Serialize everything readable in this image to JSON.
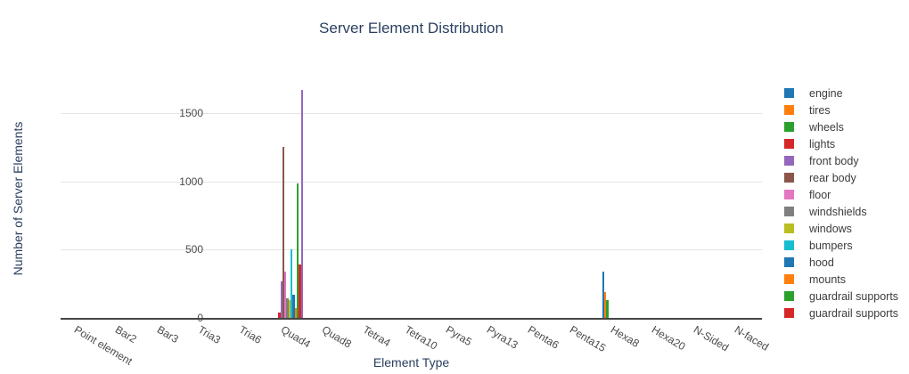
{
  "chart_data": {
    "type": "bar",
    "title": "Server Element Distribution",
    "xlabel": "Element Type",
    "ylabel": "Number of Server Elements",
    "grid": true,
    "legend_position": "right",
    "yticks": [
      0,
      500,
      1000,
      1500
    ],
    "ylim": [
      0,
      1754
    ],
    "categories": [
      "Point element",
      "Bar2",
      "Bar3",
      "Tria3",
      "Tria6",
      "Quad4",
      "Quad8",
      "Tetra4",
      "Tetra10",
      "Pyra5",
      "Pyra13",
      "Penta6",
      "Penta15",
      "Hexa8",
      "Hexa20",
      "N-Sided",
      "N-faced"
    ],
    "series": [
      {
        "name": "engine",
        "color": "#1f77b4",
        "in_legend": true,
        "values": [
          0,
          0,
          0,
          0,
          0,
          0,
          0,
          0,
          0,
          0,
          0,
          0,
          0,
          340,
          0,
          0,
          0
        ]
      },
      {
        "name": "tires",
        "color": "#ff7f0e",
        "in_legend": true,
        "values": [
          0,
          0,
          0,
          0,
          0,
          0,
          0,
          0,
          0,
          0,
          0,
          0,
          0,
          190,
          0,
          0,
          0
        ]
      },
      {
        "name": "wheels",
        "color": "#2ca02c",
        "in_legend": true,
        "values": [
          0,
          0,
          0,
          0,
          0,
          0,
          0,
          0,
          0,
          0,
          0,
          0,
          0,
          130,
          0,
          0,
          0
        ]
      },
      {
        "name": "lights",
        "color": "#d62728",
        "in_legend": true,
        "values": [
          0,
          0,
          0,
          0,
          0,
          40,
          0,
          0,
          0,
          0,
          0,
          0,
          0,
          0,
          0,
          0,
          0
        ]
      },
      {
        "name": "front body",
        "color": "#9467bd",
        "in_legend": true,
        "values": [
          0,
          0,
          0,
          0,
          0,
          265,
          0,
          0,
          0,
          0,
          0,
          0,
          0,
          0,
          0,
          0,
          0
        ]
      },
      {
        "name": "rear body",
        "color": "#8c564b",
        "in_legend": true,
        "values": [
          0,
          0,
          0,
          0,
          0,
          1250,
          0,
          0,
          0,
          0,
          0,
          0,
          0,
          0,
          0,
          0,
          0
        ]
      },
      {
        "name": "floor",
        "color": "#e377c2",
        "in_legend": true,
        "values": [
          0,
          0,
          0,
          0,
          0,
          340,
          0,
          0,
          0,
          0,
          0,
          0,
          0,
          0,
          0,
          0,
          0
        ]
      },
      {
        "name": "windshields",
        "color": "#7f7f7f",
        "in_legend": true,
        "values": [
          0,
          0,
          0,
          0,
          0,
          145,
          0,
          0,
          0,
          0,
          0,
          0,
          0,
          0,
          0,
          0,
          0
        ]
      },
      {
        "name": "windows",
        "color": "#bcbd22",
        "in_legend": true,
        "values": [
          0,
          0,
          0,
          0,
          0,
          130,
          0,
          0,
          0,
          0,
          0,
          0,
          0,
          0,
          0,
          0,
          0
        ]
      },
      {
        "name": "bumpers",
        "color": "#17becf",
        "in_legend": true,
        "values": [
          0,
          0,
          0,
          0,
          0,
          500,
          0,
          0,
          0,
          0,
          0,
          0,
          0,
          0,
          0,
          0,
          0
        ]
      },
      {
        "name": "hood",
        "color": "#1f77b4",
        "in_legend": true,
        "values": [
          0,
          0,
          0,
          0,
          0,
          170,
          0,
          0,
          0,
          0,
          0,
          0,
          0,
          0,
          0,
          0,
          0
        ]
      },
      {
        "name": "mounts",
        "color": "#ff7f0e",
        "in_legend": true,
        "values": [
          0,
          0,
          0,
          0,
          0,
          75,
          0,
          0,
          0,
          0,
          0,
          0,
          0,
          0,
          0,
          0,
          0
        ]
      },
      {
        "name": "guardrail supports",
        "color": "#2ca02c",
        "in_legend": true,
        "values": [
          0,
          0,
          0,
          0,
          0,
          985,
          0,
          0,
          0,
          0,
          0,
          0,
          0,
          0,
          0,
          0,
          0
        ]
      },
      {
        "name": "guardrail supports",
        "color": "#d62728",
        "in_legend": true,
        "values": [
          0,
          0,
          0,
          0,
          0,
          390,
          0,
          0,
          0,
          0,
          0,
          0,
          0,
          0,
          0,
          0,
          0
        ]
      },
      {
        "name": "front body",
        "color": "#9467bd",
        "in_legend": false,
        "values": [
          0,
          0,
          0,
          0,
          0,
          1670,
          0,
          0,
          0,
          0,
          0,
          0,
          0,
          0,
          0,
          0,
          0
        ]
      }
    ]
  }
}
